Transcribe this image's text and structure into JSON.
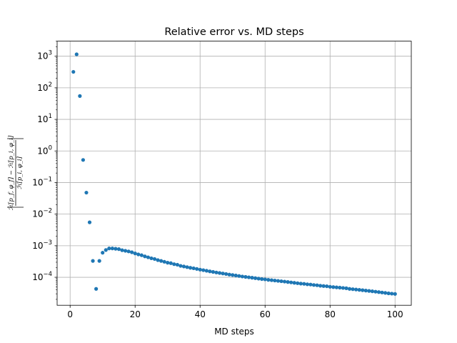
{
  "chart_data": {
    "type": "scatter",
    "title": "Relative error vs. MD steps",
    "xlabel": "MD steps",
    "ylabel": {
      "numerator": "ℋ[p_f, φ_f] − ℋ[p_i, φ_i]",
      "denominator": "ℋ[p_i, φ_i]"
    },
    "xlim": [
      -4,
      105
    ],
    "ylim": [
      1.3e-05,
      3000
    ],
    "yscale": "log",
    "grid": true,
    "color": "#1f77b4",
    "x_ticks": [
      {
        "value": 0,
        "label": "0"
      },
      {
        "value": 20,
        "label": "20"
      },
      {
        "value": 40,
        "label": "40"
      },
      {
        "value": 60,
        "label": "60"
      },
      {
        "value": 80,
        "label": "80"
      },
      {
        "value": 100,
        "label": "100"
      }
    ],
    "y_ticks": [
      {
        "value": 1000,
        "base": "10",
        "exp": "3"
      },
      {
        "value": 100,
        "base": "10",
        "exp": "2"
      },
      {
        "value": 10,
        "base": "10",
        "exp": "1"
      },
      {
        "value": 1,
        "base": "10",
        "exp": "0"
      },
      {
        "value": 0.1,
        "base": "10",
        "exp": "−1"
      },
      {
        "value": 0.01,
        "base": "10",
        "exp": "−2"
      },
      {
        "value": 0.001,
        "base": "10",
        "exp": "−3"
      },
      {
        "value": 0.0001,
        "base": "10",
        "exp": "−4"
      }
    ],
    "series": [
      {
        "x": [
          1,
          2,
          3,
          4,
          5,
          6,
          7,
          8,
          9,
          10,
          11,
          12,
          13,
          14,
          15,
          16,
          17,
          18,
          19,
          20,
          21,
          22,
          23,
          24,
          25,
          26,
          27,
          28,
          29,
          30,
          31,
          32,
          33,
          34,
          35,
          36,
          37,
          38,
          39,
          40,
          41,
          42,
          43,
          44,
          45,
          46,
          47,
          48,
          49,
          50,
          51,
          52,
          53,
          54,
          55,
          56,
          57,
          58,
          59,
          60,
          61,
          62,
          63,
          64,
          65,
          66,
          67,
          68,
          69,
          70,
          71,
          72,
          73,
          74,
          75,
          76,
          77,
          78,
          79,
          80,
          81,
          82,
          83,
          84,
          85,
          86,
          87,
          88,
          89,
          90,
          91,
          92,
          93,
          94,
          95,
          96,
          97,
          98,
          99,
          100
        ],
        "y": [
          320,
          1150,
          55,
          0.52,
          0.048,
          0.0055,
          0.00033,
          4.3e-05,
          0.00033,
          0.0006,
          0.00073,
          0.00082,
          0.00082,
          0.0008,
          0.00078,
          0.00072,
          0.00069,
          0.00066,
          0.00062,
          0.00057,
          0.00053,
          0.0005,
          0.00046,
          0.00043,
          0.0004,
          0.00038,
          0.00035,
          0.00033,
          0.00031,
          0.00029,
          0.00028,
          0.00026,
          0.00025,
          0.00023,
          0.00022,
          0.00021,
          0.0002,
          0.000193,
          0.000184,
          0.000175,
          0.000168,
          0.000161,
          0.000154,
          0.000148,
          0.000142,
          0.000137,
          0.000132,
          0.000127,
          0.000122,
          0.000118,
          0.000114,
          0.00011,
          0.000106,
          0.000103,
          0.0001,
          9.7e-05,
          9.4e-05,
          9.1e-05,
          8.8e-05,
          8.6e-05,
          8.3e-05,
          8.1e-05,
          7.9e-05,
          7.7e-05,
          7.5e-05,
          7.3e-05,
          7.1e-05,
          6.9e-05,
          6.7e-05,
          6.5e-05,
          6.3e-05,
          6.2e-05,
          6e-05,
          5.9e-05,
          5.7e-05,
          5.6e-05,
          5.4e-05,
          5.3e-05,
          5.2e-05,
          5e-05,
          4.9e-05,
          4.8e-05,
          4.7e-05,
          4.6e-05,
          4.5e-05,
          4.3e-05,
          4.2e-05,
          4.1e-05,
          4e-05,
          3.9e-05,
          3.8e-05,
          3.7e-05,
          3.6e-05,
          3.5e-05,
          3.4e-05,
          3.3e-05,
          3.2e-05,
          3.1e-05,
          3.03e-05,
          2.97e-05
        ]
      }
    ]
  }
}
